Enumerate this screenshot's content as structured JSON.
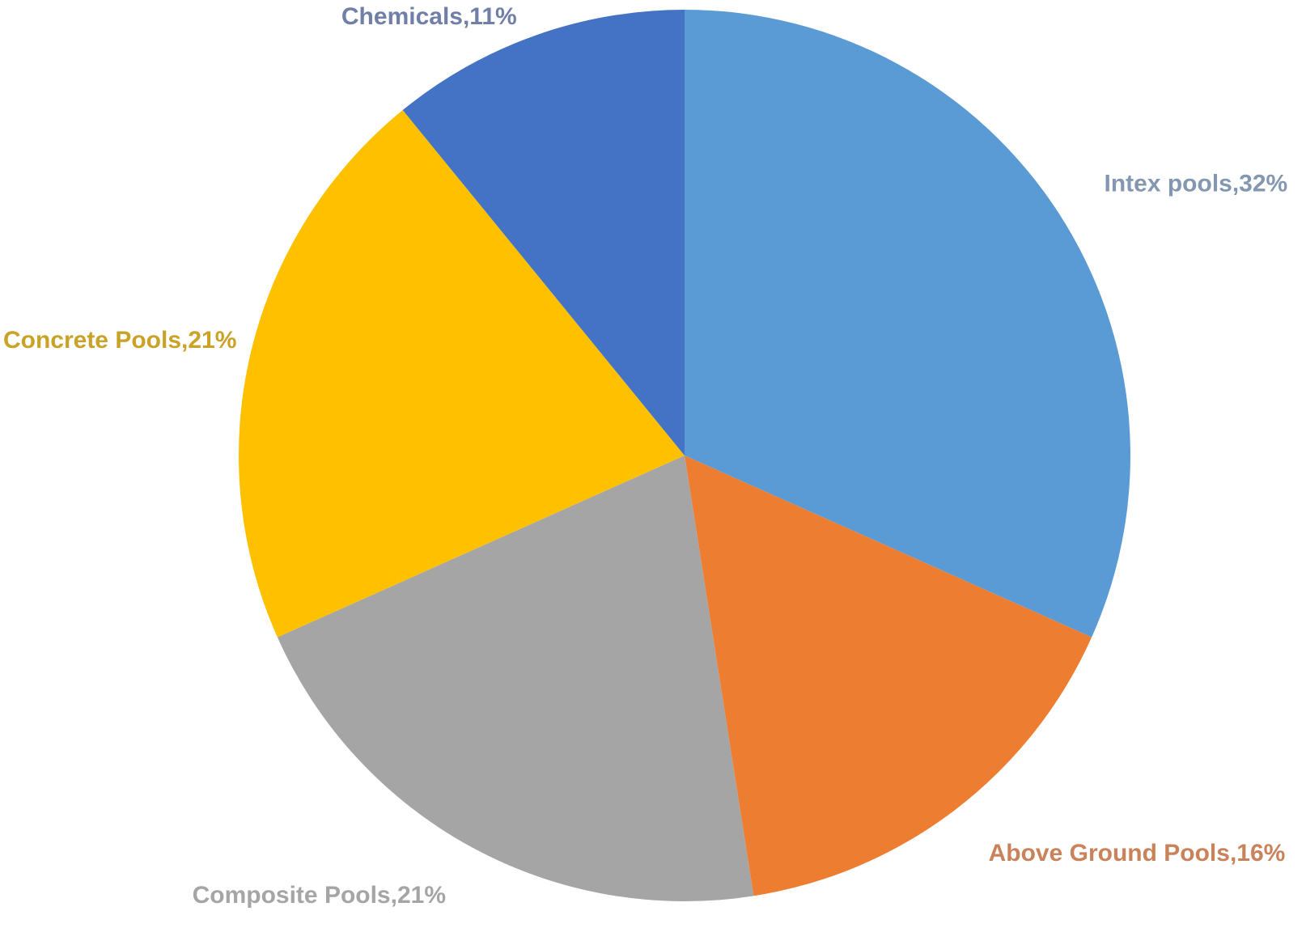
{
  "chart_data": {
    "type": "pie",
    "title": "",
    "series": [
      {
        "values": [
          32,
          16,
          21,
          21,
          11
        ]
      }
    ],
    "slices": [
      {
        "category": "Intex pools",
        "value": 32,
        "label": "Intex pools,32%",
        "color": "#5B9BD5",
        "label_color": "#8497B0"
      },
      {
        "category": "Above Ground Pools",
        "value": 16,
        "label": "Above Ground Pools,16%",
        "color": "#ED7D31",
        "label_color": "#C9825A"
      },
      {
        "category": "Composite Pools",
        "value": 21,
        "label": "Composite Pools,21%",
        "color": "#A5A5A5",
        "label_color": "#A5A5A5"
      },
      {
        "category": "Concrete Pools",
        "value": 21,
        "label": "Concrete Pools,21%",
        "color": "#FFC000",
        "label_color": "#C9A227"
      },
      {
        "category": "Chemicals",
        "value": 11,
        "label": "Chemicals,11%",
        "color": "#4472C4",
        "label_color": "#6F7FA8"
      }
    ],
    "start_angle": "12 o'clock",
    "direction": "clockwise",
    "legend": "none",
    "data_labels": "outside"
  }
}
